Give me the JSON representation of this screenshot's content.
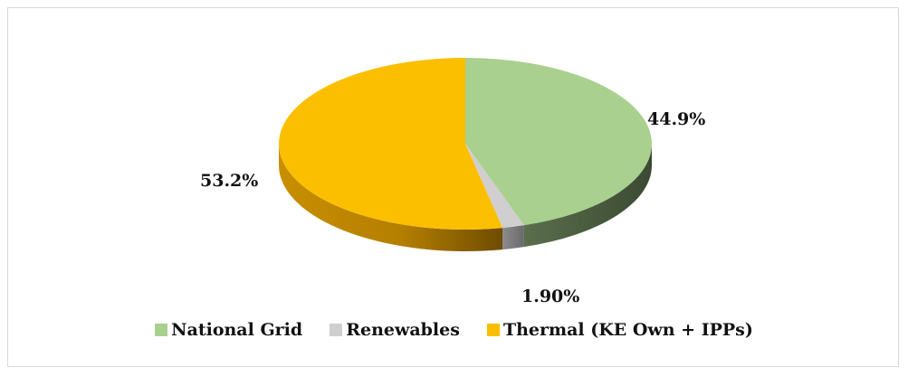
{
  "colors": {
    "national_grid": "#a9d08e",
    "renewables": "#d0cece",
    "thermal": "#fbbf00"
  },
  "chart_data": {
    "type": "pie",
    "style": "3d",
    "title": "",
    "labels": [
      "National Grid",
      "Renewables",
      "Thermal (KE Own + IPPs)"
    ],
    "values": [
      44.9,
      1.9,
      53.2
    ],
    "display_labels": [
      "44.9%",
      "1.90%",
      "53.2%"
    ],
    "colors": [
      "#a9d08e",
      "#d0cece",
      "#fbbf00"
    ],
    "legend_position": "bottom"
  },
  "legend": {
    "items": [
      {
        "label": "National Grid",
        "color": "#a9d08e"
      },
      {
        "label": "Renewables",
        "color": "#d0cece"
      },
      {
        "label": "Thermal (KE Own + IPPs)",
        "color": "#fbbf00"
      }
    ]
  }
}
